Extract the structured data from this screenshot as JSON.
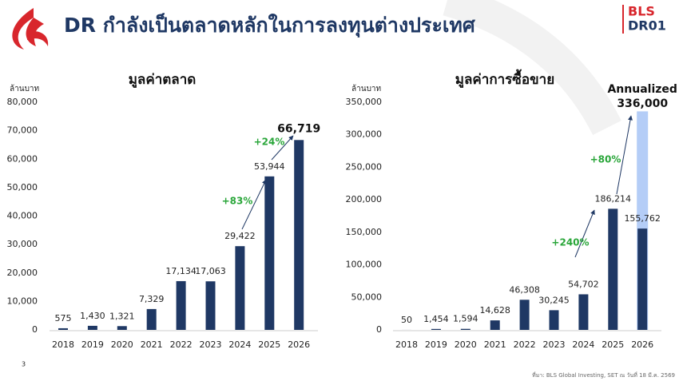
{
  "header": {
    "title": "DR กำลังเป็นตลาดหลักในการลงทุนต่างประเทศ",
    "logo_top": "BLS",
    "logo_bottom": "DR01"
  },
  "chart_data": [
    {
      "type": "bar",
      "title": "มูลค่าตลาด",
      "y_label": "ล้านบาท",
      "categories": [
        "2018",
        "2019",
        "2020",
        "2021",
        "2022",
        "2023",
        "2024",
        "2025",
        "2026"
      ],
      "values": [
        575,
        1430,
        1321,
        7329,
        17134,
        17063,
        29422,
        53944,
        66719
      ],
      "value_labels": [
        "575",
        "1,430",
        "1,321",
        "7,329",
        "17,134",
        "17,063",
        "29,422",
        "53,944",
        "66,719"
      ],
      "color": "#1f3864",
      "grid": false,
      "ylim": [
        0,
        80000
      ],
      "yticks": [
        0,
        {
          "value": 10000,
          "label": "10,000"
        },
        {
          "value": 20000,
          "label": "20,000"
        },
        {
          "value": 30000,
          "label": "30,000"
        },
        {
          "value": 40000,
          "label": "40,000"
        },
        {
          "value": 50000,
          "label": "50,000"
        },
        {
          "value": 60000,
          "label": "60,000"
        },
        {
          "value": 70000,
          "label": "70,000"
        },
        {
          "value": 80000,
          "label": "80,000"
        }
      ],
      "annotations": [
        "+83%",
        "+24%"
      ]
    },
    {
      "type": "bar",
      "title": "มูลค่าการซื้อขาย",
      "y_label": "ล้านบาท",
      "categories": [
        "2018",
        "2019",
        "2020",
        "2021",
        "2022",
        "2023",
        "2024",
        "2025",
        "2026"
      ],
      "values": [
        50,
        1454,
        1594,
        14628,
        46308,
        30245,
        54702,
        186214,
        155762
      ],
      "value_labels": [
        "50",
        "1,454",
        "1,594",
        "14,628",
        "46,308",
        "30,245",
        "54,702",
        "186,214",
        "155,762"
      ],
      "color": "#1f3864",
      "grid": false,
      "annualized": {
        "label": "Annualized",
        "value": 336000,
        "value_label": "336,000",
        "color": "#b4cdf7"
      },
      "ylim": [
        0,
        350000
      ],
      "yticks": [
        0,
        {
          "value": 50000,
          "label": "50,000"
        },
        {
          "value": 100000,
          "label": "100,000"
        },
        {
          "value": 150000,
          "label": "150,000"
        },
        {
          "value": 200000,
          "label": "200,000"
        },
        {
          "value": 250000,
          "label": "250,000"
        },
        {
          "value": 300000,
          "label": "300,000"
        },
        {
          "value": 350000,
          "label": "350,000"
        }
      ],
      "annotations": [
        "+240%",
        "+80%"
      ]
    }
  ],
  "footnote": "ที่มา: BLS Global Investing, SET ณ วันที่ 18 มี.ค. 2569",
  "page_number": "3"
}
